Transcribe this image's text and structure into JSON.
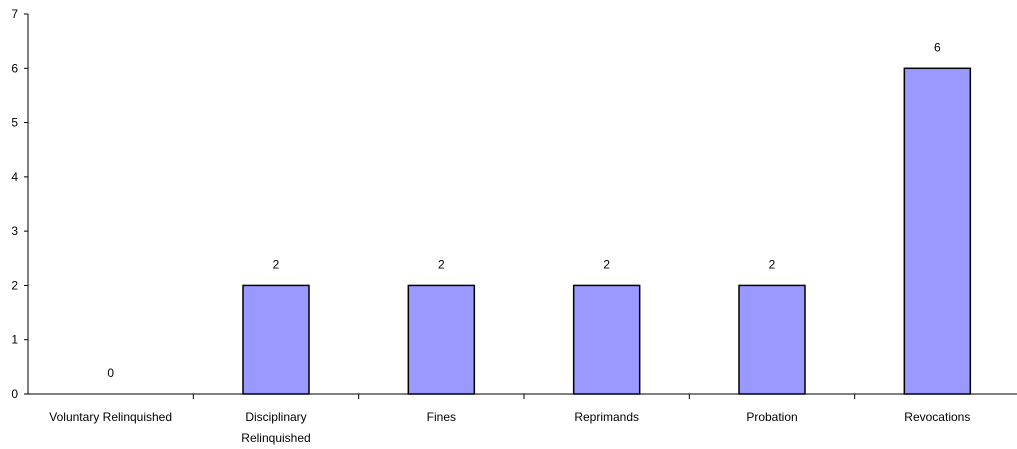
{
  "chart_data": {
    "type": "bar",
    "categories": [
      [
        "Voluntary Relinquished"
      ],
      [
        "Disciplinary",
        "Relinquished"
      ],
      [
        "Fines"
      ],
      [
        "Reprimands"
      ],
      [
        "Probation"
      ],
      [
        "Revocations"
      ]
    ],
    "values": [
      0,
      2,
      2,
      2,
      2,
      6
    ],
    "data_labels": [
      "0",
      "2",
      "2",
      "2",
      "2",
      "6"
    ],
    "title": "",
    "xlabel": "",
    "ylabel": "",
    "ylim": [
      0,
      7
    ],
    "yticks": [
      0,
      1,
      2,
      3,
      4,
      5,
      6,
      7
    ],
    "ytick_labels": [
      "0",
      "1",
      "2",
      "3",
      "4",
      "5",
      "6",
      "7"
    ],
    "grid": false,
    "legend": "none",
    "colors": {
      "bar_fill": "#9999ff",
      "bar_stroke": "#000000",
      "axis": "#000000"
    }
  }
}
